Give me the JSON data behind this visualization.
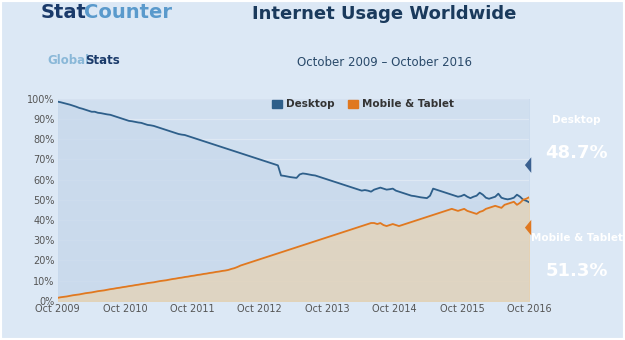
{
  "title": "Internet Usage Worldwide",
  "subtitle": "October 2009 – October 2016",
  "desktop_label": "Desktop",
  "mobile_label": "Mobile & Tablet",
  "desktop_color": "#2e5f8a",
  "mobile_color": "#e07820",
  "desktop_end_pct": "48.7%",
  "mobile_end_pct": "51.3%",
  "bg_color": "#dce8f5",
  "plot_bg": "#dce8f5",
  "header_bg": "#dce8f5",
  "title_color": "#1a3a5c",
  "subtitle_color": "#2a4a6a",
  "x_labels": [
    "Oct 2009",
    "Oct 2010",
    "Oct 2011",
    "Oct 2012",
    "Oct 2013",
    "Oct 2014",
    "Oct 2015",
    "Oct 2016"
  ],
  "desktop_badge_bg": "#3a6090",
  "mobile_badge_bg": "#e07820",
  "desktop_data": [
    98.5,
    98.2,
    97.8,
    97.4,
    97.0,
    96.5,
    96.0,
    95.4,
    95.0,
    94.5,
    94.0,
    93.5,
    93.5,
    93.0,
    92.8,
    92.5,
    92.2,
    92.0,
    91.5,
    91.0,
    90.5,
    90.0,
    89.5,
    89.0,
    88.8,
    88.5,
    88.2,
    88.0,
    87.5,
    87.0,
    86.8,
    86.5,
    86.0,
    85.5,
    85.0,
    84.5,
    84.0,
    83.5,
    83.0,
    82.5,
    82.2,
    82.0,
    81.5,
    81.0,
    80.5,
    80.0,
    79.5,
    79.0,
    78.5,
    78.0,
    77.5,
    77.0,
    76.5,
    76.0,
    75.5,
    75.0,
    74.5,
    74.0,
    73.5,
    73.0,
    72.5,
    72.0,
    71.5,
    71.0,
    70.5,
    70.0,
    69.5,
    69.0,
    68.5,
    68.0,
    67.5,
    67.0,
    62.0,
    61.8,
    61.5,
    61.2,
    61.0,
    60.8,
    62.5,
    63.0,
    62.8,
    62.5,
    62.2,
    62.0,
    61.5,
    61.0,
    60.5,
    60.0,
    59.5,
    59.0,
    58.5,
    58.0,
    57.5,
    57.0,
    56.5,
    56.0,
    55.5,
    55.0,
    54.5,
    54.8,
    54.5,
    54.0,
    55.0,
    55.5,
    56.0,
    55.5,
    55.0,
    55.2,
    55.5,
    54.5,
    54.0,
    53.5,
    53.0,
    52.5,
    52.0,
    51.8,
    51.5,
    51.2,
    51.0,
    50.8,
    52.0,
    55.5,
    55.0,
    54.5,
    54.0,
    53.5,
    53.0,
    52.5,
    52.0,
    51.5,
    51.8,
    52.5,
    51.5,
    50.8,
    51.5,
    52.0,
    53.5,
    52.5,
    51.0,
    50.5,
    51.0,
    51.5,
    53.0,
    51.0,
    50.5,
    50.2,
    50.5,
    51.0,
    52.5,
    51.5,
    50.0,
    49.5,
    48.7
  ],
  "mobile_data": [
    1.5,
    1.8,
    2.0,
    2.2,
    2.5,
    2.8,
    3.0,
    3.2,
    3.5,
    3.8,
    4.0,
    4.2,
    4.5,
    4.8,
    5.0,
    5.2,
    5.5,
    5.8,
    6.0,
    6.3,
    6.5,
    6.8,
    7.0,
    7.3,
    7.5,
    7.8,
    8.0,
    8.3,
    8.5,
    8.8,
    9.0,
    9.2,
    9.5,
    9.8,
    10.0,
    10.2,
    10.5,
    10.8,
    11.0,
    11.3,
    11.5,
    11.8,
    12.0,
    12.3,
    12.5,
    12.8,
    13.0,
    13.3,
    13.5,
    13.8,
    14.0,
    14.3,
    14.5,
    14.8,
    15.0,
    15.3,
    15.8,
    16.2,
    16.8,
    17.5,
    18.0,
    18.5,
    19.0,
    19.5,
    20.0,
    20.5,
    21.0,
    21.5,
    22.0,
    22.5,
    23.0,
    23.5,
    24.0,
    24.5,
    25.0,
    25.5,
    26.0,
    26.5,
    27.0,
    27.5,
    28.0,
    28.5,
    29.0,
    29.5,
    30.0,
    30.5,
    31.0,
    31.5,
    32.0,
    32.5,
    33.0,
    33.5,
    34.0,
    34.5,
    35.0,
    35.5,
    36.0,
    36.5,
    37.0,
    37.5,
    38.0,
    38.5,
    38.5,
    38.0,
    38.5,
    37.5,
    37.0,
    37.5,
    38.0,
    37.5,
    37.0,
    37.5,
    38.0,
    38.5,
    39.0,
    39.5,
    40.0,
    40.5,
    41.0,
    41.5,
    42.0,
    42.5,
    43.0,
    43.5,
    44.0,
    44.5,
    45.0,
    45.5,
    45.0,
    44.5,
    45.0,
    45.5,
    44.5,
    44.0,
    43.5,
    43.0,
    44.0,
    44.5,
    45.5,
    46.0,
    46.5,
    47.0,
    46.5,
    46.0,
    47.5,
    48.0,
    48.5,
    49.0,
    47.5,
    48.5,
    50.0,
    50.5,
    51.3
  ]
}
